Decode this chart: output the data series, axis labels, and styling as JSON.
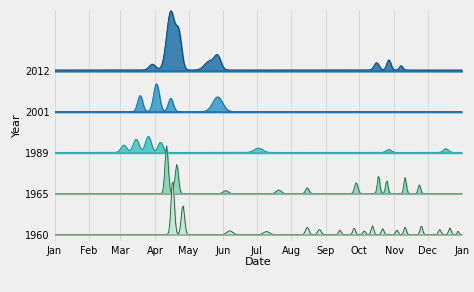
{
  "years": [
    "2012",
    "2001",
    "1989",
    "1965",
    "1960"
  ],
  "fill_colors": [
    "#1e6fa8",
    "#3198c8",
    "#45c0c0",
    "#7dd4b0",
    "#b8ead0"
  ],
  "line_colors": [
    "#0d3f60",
    "#1a6a95",
    "#1a8a8a",
    "#2a6050",
    "#2a4a30"
  ],
  "baseline_line_colors": [
    "#1e6fa8",
    "#1e6fa8",
    "#38b0b0",
    "#88aa88",
    "#88aa88"
  ],
  "background": "#f0f0f0",
  "xlabel": "Date",
  "ylabel": "Year",
  "month_labels": [
    "Jan",
    "Feb",
    "Mar",
    "Apr",
    "May",
    "Jun",
    "Jul",
    "Aug",
    "Sep",
    "Oct",
    "Nov",
    "Dec",
    "Jan"
  ],
  "month_starts": [
    0,
    31,
    59,
    90,
    120,
    151,
    181,
    212,
    243,
    273,
    304,
    334,
    365
  ],
  "baselines": [
    4.0,
    3.0,
    2.0,
    1.0,
    0.0
  ],
  "ylim": [
    -0.15,
    5.5
  ],
  "peak_scale": 1.8
}
